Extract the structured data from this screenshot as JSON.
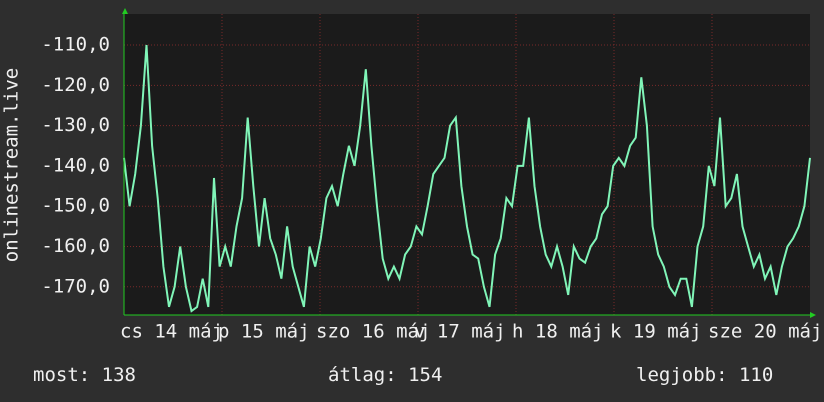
{
  "chart_data": {
    "type": "line",
    "y_label": "onlinestream.live",
    "ylim": [
      -177,
      -102.3
    ],
    "yticks": [
      {
        "value": -110,
        "label": "-110,0"
      },
      {
        "value": -120,
        "label": "-120,0"
      },
      {
        "value": -130,
        "label": "-130,0"
      },
      {
        "value": -140,
        "label": "-140,0"
      },
      {
        "value": -150,
        "label": "-150,0"
      },
      {
        "value": -160,
        "label": "-160,0"
      },
      {
        "value": -170,
        "label": "-170,0"
      }
    ],
    "xlim": [
      0,
      168
    ],
    "xticks": [
      {
        "value": 0,
        "label": "cs 14 máj"
      },
      {
        "value": 24,
        "label": "p 15 máj"
      },
      {
        "value": 48,
        "label": "szo 16 máj"
      },
      {
        "value": 72,
        "label": "v 17 máj"
      },
      {
        "value": 96,
        "label": "h 18 máj"
      },
      {
        "value": 120,
        "label": "k 19 máj"
      },
      {
        "value": 144,
        "label": "sze 20 máj"
      }
    ],
    "grid": true,
    "series": [
      {
        "color": "#80f5b8",
        "values": [
          -138,
          -150,
          -142,
          -130,
          -110,
          -135,
          -148,
          -165,
          -175,
          -170,
          -160,
          -170,
          -176,
          -175,
          -168,
          -175,
          -143,
          -165,
          -160,
          -165,
          -155,
          -148,
          -128,
          -145,
          -160,
          -148,
          -158,
          -162,
          -168,
          -155,
          -165,
          -170,
          -175,
          -160,
          -165,
          -158,
          -148,
          -145,
          -150,
          -142,
          -135,
          -140,
          -130,
          -116,
          -135,
          -150,
          -163,
          -168,
          -165,
          -168,
          -162,
          -160,
          -155,
          -157,
          -150,
          -142,
          -140,
          -138,
          -130,
          -128,
          -145,
          -155,
          -162,
          -163,
          -170,
          -175,
          -162,
          -158,
          -148,
          -150,
          -140,
          -140,
          -128,
          -145,
          -155,
          -162,
          -165,
          -160,
          -165,
          -172,
          -160,
          -163,
          -164,
          -160,
          -158,
          -152,
          -150,
          -140,
          -138,
          -140,
          -135,
          -133,
          -118,
          -130,
          -155,
          -162,
          -165,
          -170,
          -172,
          -168,
          -168,
          -175,
          -160,
          -155,
          -140,
          -145,
          -128,
          -150,
          -148,
          -142,
          -155,
          -160,
          -165,
          -162,
          -168,
          -165,
          -172,
          -165,
          -160,
          -158,
          -155,
          -150,
          -138
        ]
      }
    ],
    "footer": [
      {
        "label": "most:",
        "value": 138
      },
      {
        "label": "átlag:",
        "value": 154
      },
      {
        "label": "legjobb:",
        "value": 110
      }
    ]
  }
}
